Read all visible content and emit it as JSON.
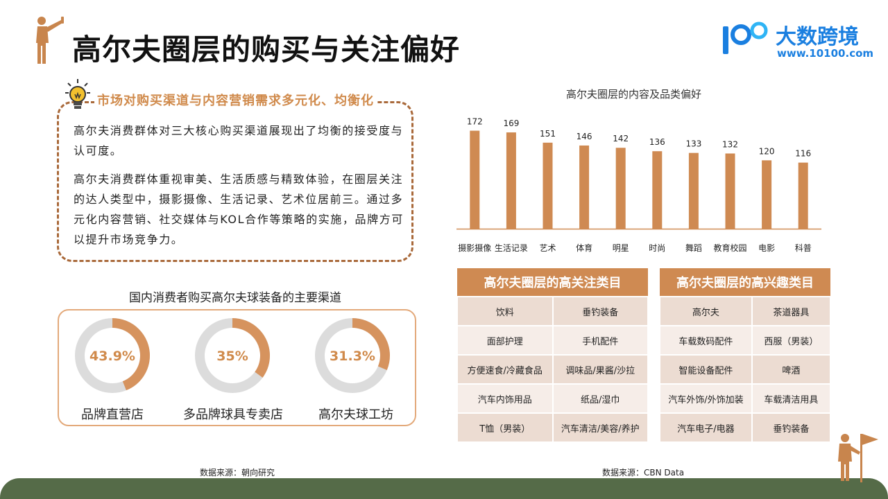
{
  "header": {
    "title": "高尔夫圈层的购买与关注偏好",
    "brand_name": "大数跨境",
    "brand_url": "www.10100.com",
    "brand_number": "100"
  },
  "insight": {
    "title": "市场对购买渠道与内容营销需求多元化、均衡化",
    "paragraphs": [
      "高尔夫消费群体对三大核心购买渠道展现出了均衡的接受度与认可度。",
      "高尔夫消费群体重视审美、生活质感与精致体验，在圈层关注的达人类型中，摄影摄像、生活记录、艺术位居前三。通过多元化内容营销、社交媒体与KOL合作等策略的实施，品牌方可以提升市场竞争力。"
    ]
  },
  "channels": {
    "title": "国内消费者购买高尔夫球装备的主要渠道",
    "items": [
      {
        "label": "品牌直营店",
        "value_text": "43.9%",
        "value": 43.9
      },
      {
        "label": "多品牌球具专卖店",
        "value_text": "35%",
        "value": 35
      },
      {
        "label": "高尔夫球工坊",
        "value_text": "31.3%",
        "value": 31.3
      }
    ],
    "source": "数据来源：朝向研究"
  },
  "chart_data": {
    "type": "bar",
    "title": "高尔夫圈层的内容及品类偏好",
    "categories": [
      "摄影摄像",
      "生活记录",
      "艺术",
      "体育",
      "明星",
      "时尚",
      "舞蹈",
      "教育校园",
      "电影",
      "科普"
    ],
    "values": [
      172,
      169,
      151,
      146,
      142,
      136,
      133,
      132,
      120,
      116
    ],
    "ylim": [
      0,
      180
    ],
    "grid": false,
    "bar_color": "#cf8a52"
  },
  "tables": {
    "attention": {
      "title": "高尔夫圈层的高关注类目",
      "rows": [
        [
          "饮料",
          "垂钓装备"
        ],
        [
          "面部护理",
          "手机配件"
        ],
        [
          "方便速食/冷藏食品",
          "调味品/果酱/沙拉"
        ],
        [
          "汽车内饰用品",
          "纸品/湿巾"
        ],
        [
          "T恤（男装）",
          "汽车清洁/美容/养护"
        ]
      ]
    },
    "interest": {
      "title": "高尔夫圈层的高兴趣类目",
      "rows": [
        [
          "高尔夫",
          "茶道器具"
        ],
        [
          "车载数码配件",
          "西服（男装）"
        ],
        [
          "智能设备配件",
          "啤酒"
        ],
        [
          "汽车外饰/外饰加装",
          "车载清洁用具"
        ],
        [
          "汽车电子/电器",
          "垂钓装备"
        ]
      ]
    },
    "source": "数据来源：CBN Data"
  },
  "colors": {
    "accent": "#cf8a52",
    "dark_brown": "#a9693a",
    "brand_blue": "#1a7fe0",
    "footer_green": "#556b48",
    "row_dark": "#ecdcd2",
    "row_light": "#f6ede8"
  },
  "icons": [
    "golfer-icon",
    "lightbulb-icon",
    "golfer-flag-icon"
  ]
}
